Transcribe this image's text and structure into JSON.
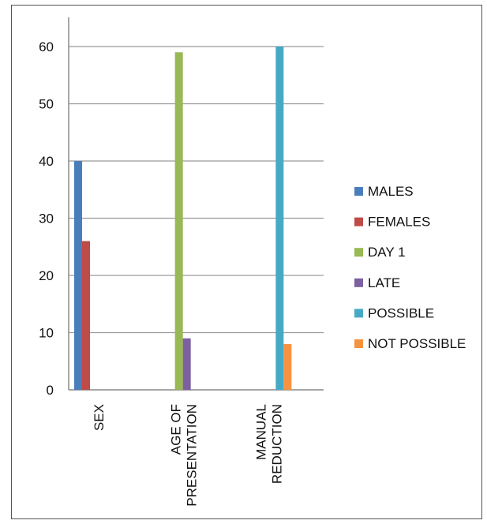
{
  "chart_data": {
    "type": "bar",
    "categories": [
      [
        "SEX"
      ],
      [
        "AGE OF",
        "PRESENTATION"
      ],
      [
        "MANUAL",
        "REDUCTION"
      ]
    ],
    "ylim": [
      0,
      60
    ],
    "yticks": [
      0,
      10,
      20,
      30,
      40,
      50,
      60
    ],
    "grid": true,
    "legend_position": "right",
    "series": [
      {
        "name": "MALES",
        "color": "#4a7ebb",
        "values": [
          40,
          null,
          null
        ]
      },
      {
        "name": "FEMALES",
        "color": "#be4b48",
        "values": [
          26,
          null,
          null
        ]
      },
      {
        "name": "DAY 1",
        "color": "#98b954",
        "values": [
          null,
          59,
          null
        ]
      },
      {
        "name": "LATE",
        "color": "#7d60a0",
        "values": [
          null,
          9,
          null
        ]
      },
      {
        "name": "POSSIBLE",
        "color": "#46aac5",
        "values": [
          null,
          null,
          60
        ]
      },
      {
        "name": "NOT POSSIBLE",
        "color": "#f69240",
        "values": [
          null,
          null,
          8
        ]
      }
    ]
  }
}
